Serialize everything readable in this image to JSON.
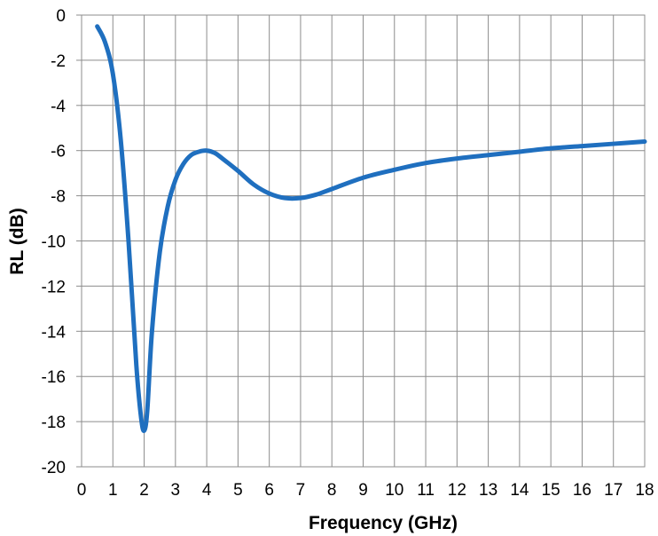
{
  "chart_data": {
    "type": "line",
    "title": "",
    "xlabel": "Frequency (GHz)",
    "ylabel": "RL (dB)",
    "xlim": [
      0,
      18
    ],
    "ylim": [
      -20,
      0
    ],
    "grid": true,
    "legend": "none",
    "line_color": "#1f6fbf",
    "x_ticks": [
      "0",
      "1",
      "2",
      "3",
      "4",
      "5",
      "6",
      "7",
      "8",
      "9",
      "10",
      "11",
      "12",
      "13",
      "14",
      "15",
      "16",
      "17",
      "18"
    ],
    "y_ticks": [
      "0",
      "-2",
      "-4",
      "-6",
      "-8",
      "-10",
      "-12",
      "-14",
      "-16",
      "-18",
      "-20"
    ],
    "series": [
      {
        "x": [
          0.5,
          0.75,
          1.0,
          1.25,
          1.5,
          1.75,
          1.9,
          2.0,
          2.1,
          2.25,
          2.5,
          2.75,
          3.0,
          3.25,
          3.5,
          3.75,
          4.0,
          4.25,
          4.5,
          5.0,
          5.5,
          6.0,
          6.5,
          7.0,
          7.5,
          8.0,
          9.0,
          10.0,
          11.0,
          12.0,
          13.0,
          14.0,
          15.0,
          16.0,
          17.0,
          18.0
        ],
        "values": [
          -0.5,
          -1.2,
          -2.6,
          -5.5,
          -10.0,
          -15.5,
          -17.8,
          -18.4,
          -17.5,
          -14.0,
          -10.5,
          -8.5,
          -7.3,
          -6.6,
          -6.2,
          -6.05,
          -6.0,
          -6.1,
          -6.35,
          -6.9,
          -7.5,
          -7.9,
          -8.1,
          -8.1,
          -7.95,
          -7.7,
          -7.2,
          -6.85,
          -6.55,
          -6.35,
          -6.2,
          -6.05,
          -5.9,
          -5.8,
          -5.7,
          -5.6
        ]
      }
    ]
  }
}
